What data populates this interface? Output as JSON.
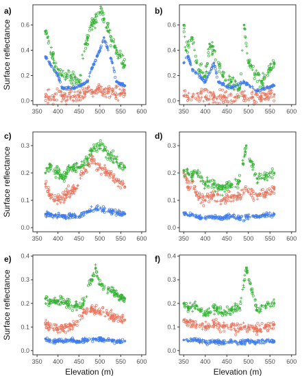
{
  "colors": {
    "red": "#e9735c",
    "green": "#33b233",
    "blue": "#3f7bea",
    "frame": "#333333"
  },
  "chart_data": [
    {
      "panel": "a)",
      "type": "scatter",
      "xlabel": "",
      "ylabel": "Surface reflectance",
      "xlim": [
        340,
        610
      ],
      "ylim": [
        -0.03,
        0.76
      ],
      "xticks": [
        350,
        400,
        450,
        500,
        550,
        600
      ],
      "yticks": [
        0.0,
        0.2,
        0.4,
        0.6
      ],
      "ytick_labels": [
        "0.0",
        "0.2",
        "0.4",
        "0.6"
      ],
      "series": [
        {
          "color": "red",
          "x": [
            370,
            390,
            410,
            430,
            450,
            470,
            490,
            510,
            530,
            550,
            560
          ],
          "y": [
            0.03,
            0.03,
            0.04,
            0.03,
            0.03,
            0.07,
            0.08,
            0.09,
            0.08,
            0.06,
            0.06
          ]
        },
        {
          "color": "blue",
          "x": [
            370,
            380,
            400,
            410,
            440,
            470,
            480,
            500,
            510,
            530,
            540,
            560
          ],
          "y": [
            0.35,
            0.3,
            0.2,
            0.1,
            0.1,
            0.15,
            0.25,
            0.4,
            0.5,
            0.3,
            0.15,
            0.12
          ]
        },
        {
          "color": "green",
          "x": [
            370,
            375,
            390,
            400,
            410,
            430,
            450,
            470,
            480,
            500,
            510,
            520,
            540,
            560
          ],
          "y": [
            0.55,
            0.5,
            0.3,
            0.25,
            0.2,
            0.2,
            0.15,
            0.5,
            0.6,
            0.7,
            0.65,
            0.55,
            0.4,
            0.28
          ]
        }
      ]
    },
    {
      "panel": "b)",
      "type": "scatter",
      "xlabel": "",
      "ylabel": "",
      "xlim": [
        340,
        610
      ],
      "ylim": [
        -0.03,
        0.76
      ],
      "xticks": [
        350,
        400,
        450,
        500,
        550,
        600
      ],
      "yticks": [
        0.0,
        0.2,
        0.4,
        0.6
      ],
      "ytick_labels": [
        "0.0",
        "0.2",
        "0.4",
        "0.6"
      ],
      "series": [
        {
          "color": "red",
          "x": [
            350,
            370,
            400,
            420,
            440,
            470,
            490,
            510,
            530,
            560
          ],
          "y": [
            0.04,
            0.03,
            0.03,
            0.03,
            0.03,
            0.03,
            0.04,
            0.03,
            0.04,
            0.05
          ]
        },
        {
          "color": "blue",
          "x": [
            350,
            360,
            370,
            400,
            420,
            430,
            460,
            490,
            520,
            560
          ],
          "y": [
            0.3,
            0.35,
            0.25,
            0.15,
            0.3,
            0.15,
            0.1,
            0.15,
            0.08,
            0.12
          ]
        },
        {
          "color": "green",
          "x": [
            350,
            355,
            370,
            380,
            400,
            410,
            420,
            440,
            460,
            480,
            490,
            500,
            530,
            560
          ],
          "y": [
            0.6,
            0.4,
            0.5,
            0.3,
            0.2,
            0.45,
            0.4,
            0.2,
            0.15,
            0.1,
            0.6,
            0.3,
            0.15,
            0.3
          ]
        }
      ]
    },
    {
      "panel": "c)",
      "type": "scatter",
      "xlabel": "",
      "ylabel": "Surface reflectance",
      "xlim": [
        340,
        610
      ],
      "ylim": [
        -0.015,
        0.35
      ],
      "xticks": [
        350,
        400,
        450,
        500,
        550,
        600
      ],
      "yticks": [
        0.0,
        0.1,
        0.2,
        0.3
      ],
      "ytick_labels": [
        "0.0",
        "0.1",
        "0.2",
        "0.3"
      ],
      "series": [
        {
          "color": "red",
          "x": [
            370,
            380,
            400,
            420,
            440,
            460,
            480,
            500,
            520,
            540,
            560
          ],
          "y": [
            0.16,
            0.12,
            0.1,
            0.12,
            0.14,
            0.2,
            0.25,
            0.22,
            0.2,
            0.17,
            0.15
          ]
        },
        {
          "color": "blue",
          "x": [
            370,
            390,
            410,
            430,
            450,
            470,
            490,
            510,
            530,
            550,
            560
          ],
          "y": [
            0.05,
            0.045,
            0.04,
            0.045,
            0.04,
            0.06,
            0.07,
            0.065,
            0.06,
            0.05,
            0.05
          ]
        },
        {
          "color": "green",
          "x": [
            370,
            380,
            400,
            410,
            430,
            450,
            470,
            480,
            500,
            520,
            540,
            560
          ],
          "y": [
            0.2,
            0.22,
            0.2,
            0.18,
            0.22,
            0.22,
            0.25,
            0.28,
            0.3,
            0.27,
            0.24,
            0.22
          ]
        }
      ]
    },
    {
      "panel": "d)",
      "type": "scatter",
      "xlabel": "",
      "ylabel": "",
      "xlim": [
        340,
        610
      ],
      "ylim": [
        -0.015,
        0.35
      ],
      "xticks": [
        350,
        400,
        450,
        500,
        550,
        600
      ],
      "yticks": [
        0.0,
        0.1,
        0.2,
        0.3
      ],
      "ytick_labels": [
        "0.0",
        "0.1",
        "0.2",
        "0.3"
      ],
      "series": [
        {
          "color": "red",
          "x": [
            350,
            360,
            370,
            380,
            400,
            420,
            440,
            460,
            480,
            500,
            520,
            540,
            560
          ],
          "y": [
            0.2,
            0.15,
            0.17,
            0.12,
            0.1,
            0.12,
            0.1,
            0.11,
            0.12,
            0.13,
            0.12,
            0.13,
            0.14
          ]
        },
        {
          "color": "blue",
          "x": [
            350,
            360,
            370,
            380,
            400,
            420,
            440,
            460,
            480,
            500,
            520,
            540,
            560
          ],
          "y": [
            0.055,
            0.045,
            0.05,
            0.04,
            0.035,
            0.04,
            0.035,
            0.04,
            0.035,
            0.04,
            0.04,
            0.045,
            0.05
          ]
        },
        {
          "color": "green",
          "x": [
            350,
            360,
            370,
            380,
            400,
            420,
            440,
            460,
            480,
            495,
            520,
            540,
            560
          ],
          "y": [
            0.21,
            0.2,
            0.19,
            0.2,
            0.16,
            0.16,
            0.14,
            0.16,
            0.17,
            0.3,
            0.18,
            0.19,
            0.2
          ]
        }
      ]
    },
    {
      "panel": "e)",
      "type": "scatter",
      "xlabel": "Elevation (m)",
      "ylabel": "Surface reflectance",
      "xlim": [
        340,
        610
      ],
      "ylim": [
        -0.018,
        0.405
      ],
      "xticks": [
        350,
        400,
        450,
        500,
        550,
        600
      ],
      "yticks": [
        0.0,
        0.1,
        0.2,
        0.3,
        0.4
      ],
      "ytick_labels": [
        "0.0",
        "0.1",
        "0.2",
        "0.3",
        "0.4"
      ],
      "series": [
        {
          "color": "red",
          "x": [
            370,
            380,
            400,
            420,
            440,
            460,
            480,
            500,
            520,
            540,
            560
          ],
          "y": [
            0.11,
            0.1,
            0.09,
            0.1,
            0.11,
            0.16,
            0.18,
            0.16,
            0.15,
            0.14,
            0.13
          ]
        },
        {
          "color": "blue",
          "x": [
            370,
            390,
            410,
            430,
            450,
            470,
            490,
            510,
            530,
            550,
            560
          ],
          "y": [
            0.05,
            0.04,
            0.04,
            0.045,
            0.04,
            0.045,
            0.05,
            0.045,
            0.04,
            0.04,
            0.04
          ]
        },
        {
          "color": "green",
          "x": [
            370,
            380,
            400,
            420,
            440,
            460,
            480,
            490,
            500,
            520,
            540,
            560
          ],
          "y": [
            0.22,
            0.2,
            0.21,
            0.2,
            0.19,
            0.2,
            0.3,
            0.35,
            0.28,
            0.26,
            0.24,
            0.22
          ]
        }
      ]
    },
    {
      "panel": "f)",
      "type": "scatter",
      "xlabel": "Elevation (m)",
      "ylabel": "",
      "xlim": [
        340,
        610
      ],
      "ylim": [
        -0.018,
        0.405
      ],
      "xticks": [
        350,
        400,
        450,
        500,
        550,
        600
      ],
      "yticks": [
        0.0,
        0.1,
        0.2,
        0.3,
        0.4
      ],
      "ytick_labels": [
        "0.0",
        "0.1",
        "0.2",
        "0.3",
        "0.4"
      ],
      "series": [
        {
          "color": "red",
          "x": [
            350,
            360,
            380,
            400,
            420,
            440,
            460,
            480,
            500,
            520,
            540,
            560
          ],
          "y": [
            0.13,
            0.12,
            0.11,
            0.1,
            0.11,
            0.1,
            0.1,
            0.09,
            0.1,
            0.09,
            0.1,
            0.11
          ]
        },
        {
          "color": "blue",
          "x": [
            350,
            360,
            380,
            400,
            420,
            440,
            460,
            480,
            500,
            520,
            540,
            560
          ],
          "y": [
            0.045,
            0.04,
            0.045,
            0.035,
            0.04,
            0.035,
            0.04,
            0.035,
            0.04,
            0.035,
            0.04,
            0.04
          ]
        },
        {
          "color": "green",
          "x": [
            350,
            360,
            380,
            400,
            420,
            440,
            460,
            480,
            495,
            520,
            540,
            560
          ],
          "y": [
            0.2,
            0.18,
            0.19,
            0.15,
            0.18,
            0.16,
            0.17,
            0.18,
            0.35,
            0.17,
            0.19,
            0.2
          ]
        }
      ]
    }
  ]
}
